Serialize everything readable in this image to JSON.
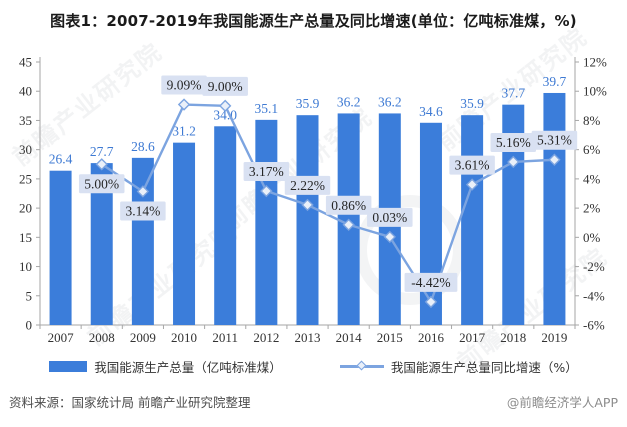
{
  "title": "图表1：2007-2019年我国能源生产总量及同比增速(单位：亿吨标准煤，%)",
  "watermark": {
    "text": "前瞻产业研究院"
  },
  "footer": {
    "source": "资料来源：国家统计局 前瞻产业研究院整理",
    "credit": "@前瞻经济学人APP"
  },
  "colors": {
    "bar": "#3b7dda",
    "bar_label": "#3e7ad3",
    "line": "#7ca4e0",
    "marker_fill": "#eaf0f9",
    "pct_label_bg": "#d9e1f2",
    "pct_label_text": "#262626",
    "axis": "#a6a6a6",
    "axis_text": "#333333"
  },
  "chart_data": {
    "type": "bar",
    "title": "图表1：2007-2019年我国能源生产总量及同比增速(单位：亿吨标准煤，%)",
    "categories": [
      "2007",
      "2008",
      "2009",
      "2010",
      "2011",
      "2012",
      "2013",
      "2014",
      "2015",
      "2016",
      "2017",
      "2018",
      "2019"
    ],
    "series": [
      {
        "name": "我国能源生产总量（亿吨标准煤）",
        "type": "bar",
        "values": [
          26.4,
          27.7,
          28.6,
          31.2,
          34.0,
          35.1,
          35.9,
          36.2,
          36.2,
          34.6,
          35.9,
          37.7,
          39.7
        ]
      },
      {
        "name": "我国能源生产总量同比增速（%）",
        "type": "line",
        "values": [
          null,
          5.0,
          3.14,
          9.09,
          9.0,
          3.17,
          2.22,
          0.86,
          0.03,
          -4.42,
          3.61,
          5.16,
          5.31
        ],
        "labels": [
          null,
          "5.00%",
          "3.14%",
          "9.09%",
          "9.00%",
          "3.17%",
          "2.22%",
          "0.86%",
          "0.03%",
          "-4.42%",
          "3.61%",
          "5.16%",
          "5.31%"
        ],
        "label_positions": [
          null,
          "below",
          "below",
          "above",
          "above",
          "above",
          "above",
          "above",
          "above",
          "above",
          "above",
          "above",
          "above"
        ]
      }
    ],
    "left_axis": {
      "min": 0,
      "max": 45,
      "step": 5
    },
    "right_axis": {
      "min": -6,
      "max": 12,
      "step": 2,
      "suffix": "%"
    },
    "grid": false,
    "legend_position": "bottom"
  }
}
